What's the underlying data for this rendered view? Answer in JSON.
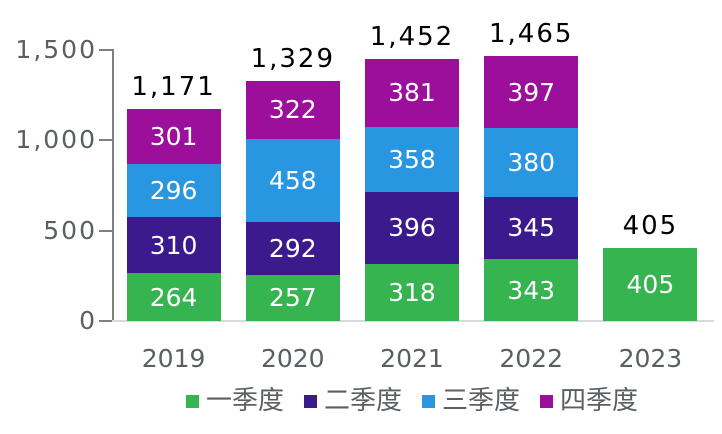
{
  "chart_data": {
    "type": "bar",
    "stacked": true,
    "title": "",
    "xlabel": "",
    "ylabel": "",
    "categories": [
      "2019",
      "2020",
      "2021",
      "2022",
      "2023"
    ],
    "series": [
      {
        "name": "一季度",
        "color": "#35B450",
        "values": [
          264,
          257,
          318,
          343,
          405
        ]
      },
      {
        "name": "二季度",
        "color": "#3A1A8C",
        "values": [
          310,
          292,
          396,
          345,
          null
        ]
      },
      {
        "name": "三季度",
        "color": "#2896E0",
        "values": [
          296,
          458,
          358,
          380,
          null
        ]
      },
      {
        "name": "四季度",
        "color": "#9B0F9B",
        "values": [
          301,
          322,
          381,
          397,
          null
        ]
      }
    ],
    "totals": [
      1171,
      1329,
      1452,
      1465,
      405
    ],
    "total_labels": [
      "1,171",
      "1,329",
      "1,452",
      "1,465",
      "405"
    ],
    "y_ticks": [
      "1,500",
      "1,000",
      "500",
      "0"
    ],
    "ylim": [
      0,
      1500
    ],
    "grid": false,
    "legend_position": "bottom"
  },
  "colors": {
    "background": "#FFFFFF",
    "axis_line": "#7F7F7F",
    "baseline": "#D9D9D9",
    "text_gray": "#595F63",
    "total_label": "#000000",
    "segment_label": "#FFFFFF"
  }
}
